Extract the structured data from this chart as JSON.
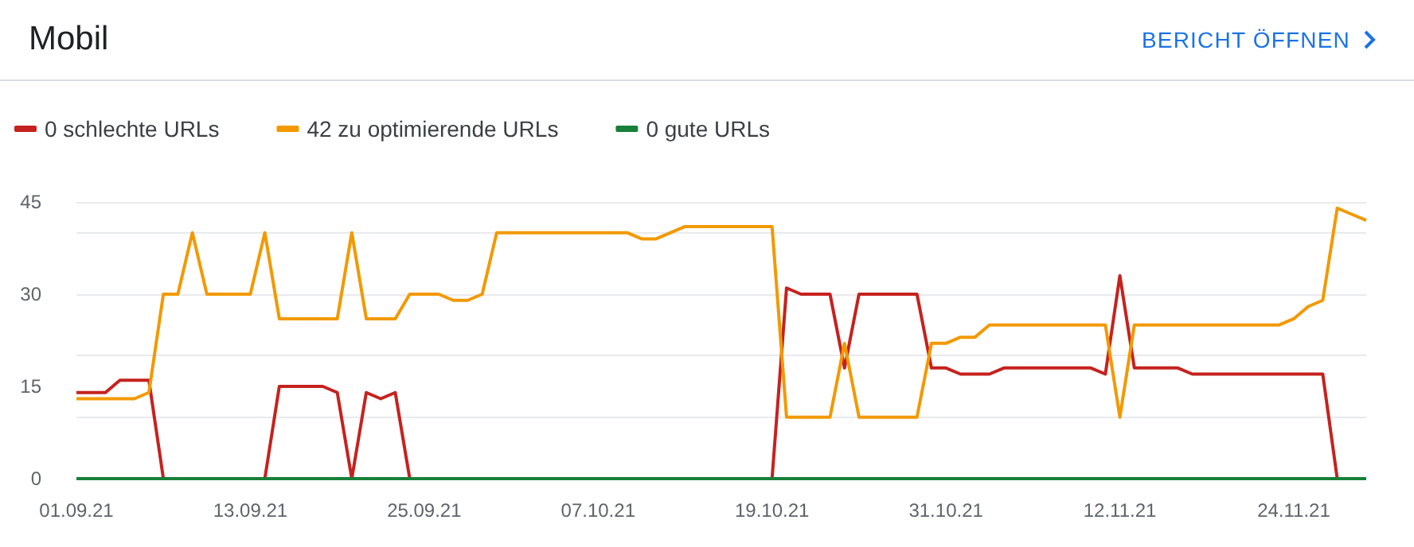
{
  "chart_data": {
    "type": "line",
    "title": "Mobil",
    "annotations": [
      "BERICHT ÖFFNEN"
    ],
    "x": [
      "--09-01",
      "--09-02",
      "--09-03",
      "--09-04",
      "--09-05",
      "--09-06",
      "--09-07",
      "--09-08",
      "--09-09",
      "--09-10",
      "--09-11",
      "--09-12",
      "--09-13",
      "--09-14",
      "--09-15",
      "--09-16",
      "--09-17",
      "--09-18",
      "--09-19",
      "--09-20",
      "--09-21",
      "--09-22",
      "--09-23",
      "--09-24",
      "--09-25",
      "--09-26",
      "--09-27",
      "--09-28",
      "--09-29",
      "--09-30",
      "--10-01",
      "--10-02",
      "--10-03",
      "--10-04",
      "--10-05",
      "--10-06",
      "--10-07",
      "--10-08",
      "--10-09",
      "--10-10",
      "--10-11",
      "--10-12",
      "--10-13",
      "--10-14",
      "--10-15",
      "--10-16",
      "--10-17",
      "--10-18",
      "--10-19",
      "--10-20",
      "--10-21",
      "--10-22",
      "--10-23",
      "--10-24",
      "--10-25",
      "--10-26",
      "--10-27",
      "--10-28",
      "--10-29",
      "--10-30",
      "--10-31",
      "--11-01",
      "--11-02",
      "--11-03",
      "--11-04",
      "--11-05",
      "--11-06",
      "--11-07",
      "--11-08",
      "--11-09",
      "--11-10",
      "--11-11",
      "--11-12",
      "--11-13",
      "--11-14",
      "--11-15",
      "--11-16",
      "--11-17",
      "--11-18",
      "--11-19",
      "--11-20",
      "--11-21",
      "--11-22",
      "--11-23",
      "--11-24",
      "--11-25",
      "--11-26",
      "--11-27",
      "--11-28",
      "--11-29"
    ],
    "series": [
      {
        "name": "0 schlechte URLs",
        "color": "#c5221f",
        "values": [
          14,
          14,
          14,
          16,
          16,
          16,
          0,
          0,
          0,
          0,
          0,
          0,
          0,
          0,
          15,
          15,
          15,
          15,
          14,
          0,
          14,
          13,
          14,
          0,
          0,
          0,
          0,
          0,
          0,
          0,
          0,
          0,
          0,
          0,
          0,
          0,
          0,
          0,
          0,
          0,
          0,
          0,
          0,
          0,
          0,
          0,
          0,
          0,
          0,
          31,
          30,
          30,
          30,
          18,
          30,
          30,
          30,
          30,
          30,
          18,
          18,
          17,
          17,
          17,
          18,
          18,
          18,
          18,
          18,
          18,
          18,
          17,
          33,
          18,
          18,
          18,
          18,
          17,
          17,
          17,
          17,
          17,
          17,
          17,
          17,
          17,
          17,
          0,
          0,
          0
        ]
      },
      {
        "name": "42 zu optimierende URLs",
        "color": "#f29900",
        "values": [
          13,
          13,
          13,
          13,
          13,
          14,
          30,
          30,
          40,
          30,
          30,
          30,
          30,
          40,
          26,
          26,
          26,
          26,
          26,
          40,
          26,
          26,
          26,
          30,
          30,
          30,
          29,
          29,
          30,
          40,
          40,
          40,
          40,
          40,
          40,
          40,
          40,
          40,
          40,
          39,
          39,
          40,
          41,
          41,
          41,
          41,
          41,
          41,
          41,
          10,
          10,
          10,
          10,
          22,
          10,
          10,
          10,
          10,
          10,
          22,
          22,
          23,
          23,
          25,
          25,
          25,
          25,
          25,
          25,
          25,
          25,
          25,
          10,
          25,
          25,
          25,
          25,
          25,
          25,
          25,
          25,
          25,
          25,
          25,
          26,
          28,
          29,
          44,
          43,
          42
        ]
      },
      {
        "name": "0 gute URLs",
        "color": "#188038",
        "values": [
          0,
          0,
          0,
          0,
          0,
          0,
          0,
          0,
          0,
          0,
          0,
          0,
          0,
          0,
          0,
          0,
          0,
          0,
          0,
          0,
          0,
          0,
          0,
          0,
          0,
          0,
          0,
          0,
          0,
          0,
          0,
          0,
          0,
          0,
          0,
          0,
          0,
          0,
          0,
          0,
          0,
          0,
          0,
          0,
          0,
          0,
          0,
          0,
          0,
          0,
          0,
          0,
          0,
          0,
          0,
          0,
          0,
          0,
          0,
          0,
          0,
          0,
          0,
          0,
          0,
          0,
          0,
          0,
          0,
          0,
          0,
          0,
          0,
          0,
          0,
          0,
          0,
          0,
          0,
          0,
          0,
          0,
          0,
          0,
          0,
          0,
          0,
          0,
          0,
          0
        ]
      }
    ],
    "xlim": [
      "--09-01",
      "--11-29"
    ],
    "xticks": [
      {
        "value": "--09-01",
        "label": "01.09.21"
      },
      {
        "value": "--09-13",
        "label": "13.09.21"
      },
      {
        "value": "--09-25",
        "label": "25.09.21"
      },
      {
        "value": "--10-07",
        "label": "07.10.21"
      },
      {
        "value": "--10-19",
        "label": "19.10.21"
      },
      {
        "value": "--10-31",
        "label": "31.10.21"
      },
      {
        "value": "--11-12",
        "label": "12.11.21"
      },
      {
        "value": "--11-24",
        "label": "24.11.21"
      }
    ],
    "ylim": [
      0,
      45
    ],
    "yticks": [
      0,
      15,
      30,
      45
    ],
    "grid": "y",
    "legend": "top left",
    "line_style": "solid"
  }
}
